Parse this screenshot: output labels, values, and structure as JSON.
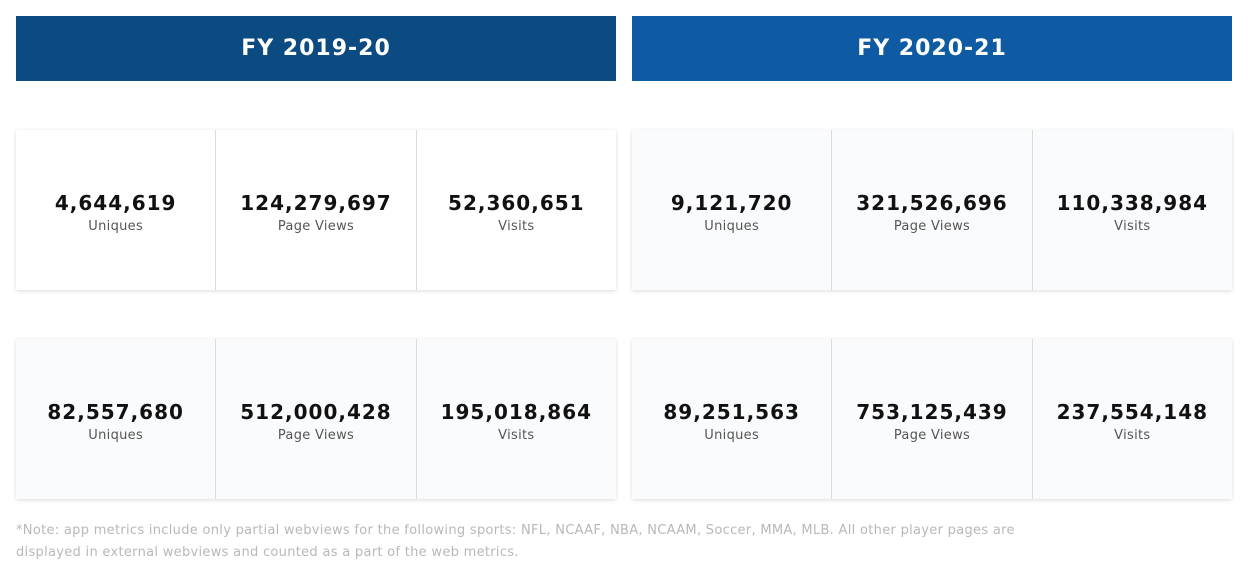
{
  "fy2019": {
    "title": "FY 2019-20",
    "web": [
      {
        "value": "4,644,619",
        "label": "Uniques"
      },
      {
        "value": "124,279,697",
        "label": "Page Views"
      },
      {
        "value": "52,360,651",
        "label": "Visits"
      }
    ],
    "app": [
      {
        "value": "82,557,680",
        "label": "Uniques"
      },
      {
        "value": "512,000,428",
        "label": "Page Views"
      },
      {
        "value": "195,018,864",
        "label": "Visits"
      }
    ]
  },
  "fy2020": {
    "title": "FY 2020-21",
    "web": [
      {
        "value": "9,121,720",
        "label": "Uniques"
      },
      {
        "value": "321,526,696",
        "label": "Page Views"
      },
      {
        "value": "110,338,984",
        "label": "Visits"
      }
    ],
    "app": [
      {
        "value": "89,251,563",
        "label": "Uniques"
      },
      {
        "value": "753,125,439",
        "label": "Page Views"
      },
      {
        "value": "237,554,148",
        "label": "Visits"
      }
    ]
  },
  "note": "*Note: app metrics include only partial webviews for the following sports: NFL, NCAAF, NBA, NCAAM, Soccer, MMA, MLB. All other player pages are displayed in external webviews and counted as a part of the web metrics.",
  "colors": {
    "fy2019_header": "#0c4a82",
    "fy2020_header": "#0f5ba3"
  }
}
